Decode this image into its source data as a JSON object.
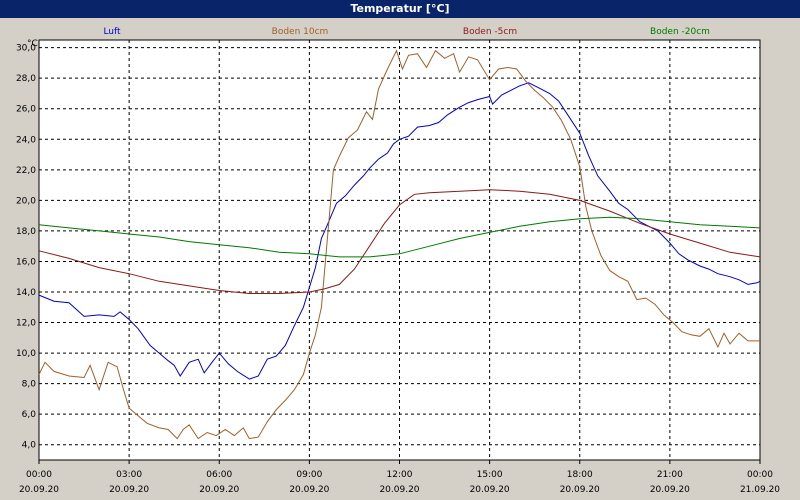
{
  "window": {
    "title": "Temperatur [°C]"
  },
  "chart_data": {
    "type": "line",
    "ylabel": "°C",
    "ylim": [
      3.0,
      30.5
    ],
    "xlim": [
      0,
      24
    ],
    "x_ticks": [
      {
        "hour": 0,
        "time": "00:00",
        "date": "20.09.20"
      },
      {
        "hour": 3,
        "time": "03:00",
        "date": "20.09.20"
      },
      {
        "hour": 6,
        "time": "06:00",
        "date": "20.09.20"
      },
      {
        "hour": 9,
        "time": "09:00",
        "date": "20.09.20"
      },
      {
        "hour": 12,
        "time": "12:00",
        "date": "20.09.20"
      },
      {
        "hour": 15,
        "time": "15:00",
        "date": "20.09.20"
      },
      {
        "hour": 18,
        "time": "18:00",
        "date": "20.09.20"
      },
      {
        "hour": 21,
        "time": "21:00",
        "date": "20.09.20"
      },
      {
        "hour": 24,
        "time": "00:00",
        "date": "21.09.20"
      }
    ],
    "y_ticks": [
      "4,0",
      "6,0",
      "8,0",
      "10,0",
      "12,0",
      "14,0",
      "16,0",
      "18,0",
      "20,0",
      "22,0",
      "24,0",
      "26,0",
      "28,0",
      "30,0"
    ],
    "y_tick_values": [
      4,
      6,
      8,
      10,
      12,
      14,
      16,
      18,
      20,
      22,
      24,
      26,
      28,
      30
    ],
    "grid": true,
    "legend_position": "top",
    "series": [
      {
        "name": "Luft",
        "color": "#0000cc",
        "points": [
          [
            0,
            13.8
          ],
          [
            0.5,
            13.4
          ],
          [
            1,
            13.3
          ],
          [
            1.5,
            12.4
          ],
          [
            2,
            12.5
          ],
          [
            2.5,
            12.4
          ],
          [
            2.7,
            12.7
          ],
          [
            3,
            12.2
          ],
          [
            3.3,
            11.6
          ],
          [
            3.7,
            10.5
          ],
          [
            4,
            10.0
          ],
          [
            4.3,
            9.5
          ],
          [
            4.5,
            9.2
          ],
          [
            4.7,
            8.5
          ],
          [
            5,
            9.4
          ],
          [
            5.3,
            9.6
          ],
          [
            5.5,
            8.7
          ],
          [
            5.8,
            9.5
          ],
          [
            6,
            10.0
          ],
          [
            6.3,
            9.3
          ],
          [
            6.6,
            8.8
          ],
          [
            7,
            8.3
          ],
          [
            7.3,
            8.5
          ],
          [
            7.6,
            9.6
          ],
          [
            7.9,
            9.8
          ],
          [
            8.2,
            10.5
          ],
          [
            8.5,
            11.8
          ],
          [
            8.8,
            13.0
          ],
          [
            9,
            14.3
          ],
          [
            9.2,
            15.6
          ],
          [
            9.4,
            17.5
          ],
          [
            9.6,
            18.4
          ],
          [
            9.9,
            19.8
          ],
          [
            10.2,
            20.3
          ],
          [
            10.5,
            21.0
          ],
          [
            10.8,
            21.6
          ],
          [
            11,
            22.1
          ],
          [
            11.3,
            22.7
          ],
          [
            11.6,
            23.1
          ],
          [
            11.8,
            23.7
          ],
          [
            12,
            24.0
          ],
          [
            12.3,
            24.2
          ],
          [
            12.6,
            24.8
          ],
          [
            13,
            24.9
          ],
          [
            13.3,
            25.1
          ],
          [
            13.6,
            25.6
          ],
          [
            14,
            26.1
          ],
          [
            14.3,
            26.4
          ],
          [
            14.6,
            26.6
          ],
          [
            15,
            26.8
          ],
          [
            15.1,
            26.3
          ],
          [
            15.4,
            26.9
          ],
          [
            15.7,
            27.2
          ],
          [
            16,
            27.5
          ],
          [
            16.3,
            27.7
          ],
          [
            16.6,
            27.4
          ],
          [
            17,
            27.0
          ],
          [
            17.3,
            26.5
          ],
          [
            17.6,
            25.6
          ],
          [
            18,
            24.4
          ],
          [
            18.3,
            22.9
          ],
          [
            18.6,
            21.6
          ],
          [
            19,
            20.6
          ],
          [
            19.3,
            19.8
          ],
          [
            19.6,
            19.4
          ],
          [
            20,
            18.6
          ],
          [
            20.3,
            18.3
          ],
          [
            20.6,
            18.0
          ],
          [
            21,
            17.2
          ],
          [
            21.3,
            16.5
          ],
          [
            21.6,
            16.1
          ],
          [
            22,
            15.7
          ],
          [
            22.3,
            15.5
          ],
          [
            22.6,
            15.2
          ],
          [
            23,
            15.0
          ],
          [
            23.3,
            14.8
          ],
          [
            23.6,
            14.5
          ],
          [
            23.9,
            14.6
          ],
          [
            24,
            14.7
          ]
        ]
      },
      {
        "name": "Boden 10cm",
        "color": "#a0602a",
        "points": [
          [
            0,
            8.6
          ],
          [
            0.2,
            9.4
          ],
          [
            0.5,
            8.8
          ],
          [
            1,
            8.5
          ],
          [
            1.5,
            8.4
          ],
          [
            1.7,
            9.2
          ],
          [
            2,
            7.6
          ],
          [
            2.3,
            9.4
          ],
          [
            2.6,
            9.1
          ],
          [
            2.8,
            7.7
          ],
          [
            3,
            6.4
          ],
          [
            3.3,
            5.9
          ],
          [
            3.6,
            5.4
          ],
          [
            4,
            5.1
          ],
          [
            4.3,
            5.0
          ],
          [
            4.6,
            4.4
          ],
          [
            4.8,
            5.0
          ],
          [
            5,
            5.3
          ],
          [
            5.3,
            4.4
          ],
          [
            5.6,
            4.8
          ],
          [
            5.9,
            4.6
          ],
          [
            6.2,
            5.0
          ],
          [
            6.5,
            4.6
          ],
          [
            6.8,
            5.1
          ],
          [
            7,
            4.4
          ],
          [
            7.3,
            4.5
          ],
          [
            7.6,
            5.5
          ],
          [
            7.9,
            6.3
          ],
          [
            8.2,
            6.9
          ],
          [
            8.5,
            7.6
          ],
          [
            8.8,
            8.6
          ],
          [
            9,
            10.0
          ],
          [
            9.2,
            11.2
          ],
          [
            9.4,
            13.0
          ],
          [
            9.6,
            17.5
          ],
          [
            9.8,
            22.0
          ],
          [
            10,
            22.9
          ],
          [
            10.3,
            24.1
          ],
          [
            10.6,
            24.6
          ],
          [
            10.9,
            25.8
          ],
          [
            11.1,
            25.3
          ],
          [
            11.3,
            27.3
          ],
          [
            11.6,
            28.6
          ],
          [
            11.9,
            29.8
          ],
          [
            12.1,
            28.6
          ],
          [
            12.3,
            29.5
          ],
          [
            12.6,
            29.6
          ],
          [
            12.9,
            28.7
          ],
          [
            13.2,
            29.8
          ],
          [
            13.5,
            29.3
          ],
          [
            13.8,
            29.6
          ],
          [
            14,
            28.4
          ],
          [
            14.3,
            29.4
          ],
          [
            14.6,
            29.2
          ],
          [
            15,
            27.9
          ],
          [
            15.3,
            28.6
          ],
          [
            15.6,
            28.7
          ],
          [
            15.9,
            28.6
          ],
          [
            16.2,
            27.8
          ],
          [
            16.5,
            27.2
          ],
          [
            16.8,
            26.7
          ],
          [
            17.1,
            26.1
          ],
          [
            17.4,
            25.2
          ],
          [
            17.7,
            24.0
          ],
          [
            18,
            22.2
          ],
          [
            18.2,
            19.6
          ],
          [
            18.4,
            18.0
          ],
          [
            18.7,
            16.4
          ],
          [
            19,
            15.4
          ],
          [
            19.3,
            15.0
          ],
          [
            19.6,
            14.7
          ],
          [
            19.9,
            13.5
          ],
          [
            20.2,
            13.6
          ],
          [
            20.5,
            13.2
          ],
          [
            20.8,
            12.5
          ],
          [
            21.1,
            12.0
          ],
          [
            21.4,
            11.4
          ],
          [
            21.7,
            11.2
          ],
          [
            22,
            11.1
          ],
          [
            22.3,
            11.6
          ],
          [
            22.6,
            10.4
          ],
          [
            22.8,
            11.3
          ],
          [
            23,
            10.6
          ],
          [
            23.3,
            11.3
          ],
          [
            23.6,
            10.8
          ],
          [
            24,
            10.8
          ]
        ]
      },
      {
        "name": "Boden -5cm",
        "color": "#8b1a1a",
        "points": [
          [
            0,
            16.7
          ],
          [
            1,
            16.2
          ],
          [
            2,
            15.6
          ],
          [
            3,
            15.2
          ],
          [
            4,
            14.7
          ],
          [
            5,
            14.4
          ],
          [
            6,
            14.1
          ],
          [
            7,
            13.9
          ],
          [
            8,
            13.9
          ],
          [
            9,
            14.0
          ],
          [
            9.5,
            14.2
          ],
          [
            10,
            14.5
          ],
          [
            10.5,
            15.5
          ],
          [
            11,
            17.0
          ],
          [
            11.5,
            18.5
          ],
          [
            12,
            19.7
          ],
          [
            12.5,
            20.4
          ],
          [
            13,
            20.5
          ],
          [
            14,
            20.6
          ],
          [
            15,
            20.7
          ],
          [
            16,
            20.6
          ],
          [
            17,
            20.4
          ],
          [
            18,
            20.0
          ],
          [
            19,
            19.3
          ],
          [
            20,
            18.5
          ],
          [
            21,
            17.8
          ],
          [
            22,
            17.2
          ],
          [
            23,
            16.6
          ],
          [
            24,
            16.3
          ]
        ]
      },
      {
        "name": "Boden -20cm",
        "color": "#007a00",
        "points": [
          [
            0,
            18.4
          ],
          [
            1,
            18.2
          ],
          [
            2,
            18.0
          ],
          [
            3,
            17.8
          ],
          [
            4,
            17.6
          ],
          [
            5,
            17.3
          ],
          [
            6,
            17.1
          ],
          [
            7,
            16.9
          ],
          [
            8,
            16.6
          ],
          [
            9,
            16.5
          ],
          [
            10,
            16.3
          ],
          [
            11,
            16.3
          ],
          [
            12,
            16.5
          ],
          [
            13,
            17.0
          ],
          [
            14,
            17.5
          ],
          [
            15,
            17.9
          ],
          [
            16,
            18.3
          ],
          [
            17,
            18.6
          ],
          [
            18,
            18.8
          ],
          [
            19,
            18.9
          ],
          [
            20,
            18.8
          ],
          [
            21,
            18.6
          ],
          [
            22,
            18.4
          ],
          [
            23,
            18.3
          ],
          [
            24,
            18.2
          ]
        ]
      }
    ]
  }
}
